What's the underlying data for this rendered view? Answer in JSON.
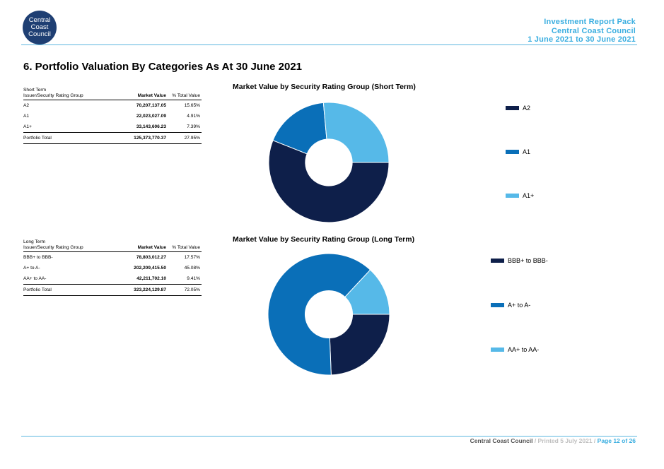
{
  "logo": {
    "lines": [
      "Central",
      "Coast",
      "Council"
    ]
  },
  "header": {
    "line1": "Investment Report Pack",
    "line2": "Central Coast Council",
    "line3": "1 June 2021 to 30 June 2021"
  },
  "page_title": "6. Portfolio Valuation By Categories As At 30 June 2021",
  "short_table": {
    "caption1": "Short Term",
    "caption2": "Issuer/Security Rating Group",
    "col_market": "Market Value",
    "col_pct": "% Total Value",
    "rows": [
      {
        "label": "A2",
        "value": "70,207,137.05",
        "pct": "15.65%"
      },
      {
        "label": "A1",
        "value": "22,023,027.09",
        "pct": "4.91%"
      },
      {
        "label": "A1+",
        "value": "33,143,606.23",
        "pct": "7.39%"
      }
    ],
    "total": {
      "label": "Portfolio Total",
      "value": "125,373,770.37",
      "pct": "27.95%"
    }
  },
  "long_table": {
    "caption1": "Long Term",
    "caption2": "Issuer/Security Rating Group",
    "col_market": "Market Value",
    "col_pct": "% Total Value",
    "rows": [
      {
        "label": "BBB+ to BBB-",
        "value": "78,803,012.27",
        "pct": "17.57%"
      },
      {
        "label": "A+ to A-",
        "value": "202,209,415.50",
        "pct": "45.08%"
      },
      {
        "label": "AA+ to AA-",
        "value": "42,211,702.10",
        "pct": "9.41%"
      }
    ],
    "total": {
      "label": "Portfolio Total",
      "value": "323,224,129.87",
      "pct": "72.05%"
    }
  },
  "colors": {
    "dark": "#0e1f4a",
    "mid": "#0a6fb8",
    "light": "#56b9e8"
  },
  "chart_data": [
    {
      "type": "pie",
      "title": "Market Value by Security Rating Group (Short Term)",
      "categories": [
        "A2",
        "A1",
        "A1+"
      ],
      "values": [
        70207137.05,
        22023027.09,
        33143606.23
      ],
      "legend": "right"
    },
    {
      "type": "pie",
      "title": "Market Value by Security Rating Group (Long Term)",
      "categories": [
        "BBB+ to BBB-",
        "A+ to A-",
        "AA+ to AA-"
      ],
      "values": [
        78803012.27,
        202209415.5,
        42211702.1
      ],
      "legend": "right"
    }
  ],
  "footer": {
    "org": "Central Coast Council",
    "printed": " / Printed 5 July 2021 / ",
    "page": "Page 12 of 26"
  }
}
